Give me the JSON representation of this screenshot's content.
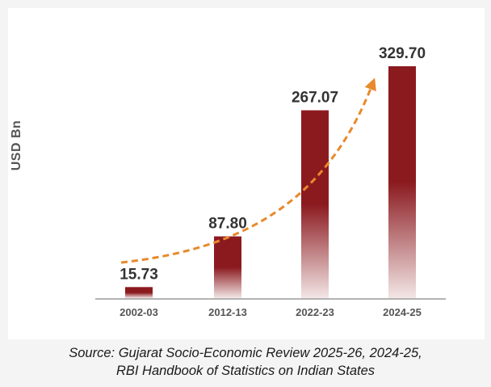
{
  "chart_data": {
    "type": "bar",
    "categories": [
      "2002-03",
      "2012-13",
      "2022-23",
      "2024-25"
    ],
    "values": [
      15.73,
      87.8,
      267.07,
      329.7
    ],
    "value_labels": [
      "15.73",
      "87.80",
      "267.07",
      "329.70"
    ],
    "title": "",
    "xlabel": "",
    "ylabel": "USD Bn",
    "ylim": [
      0,
      340
    ],
    "grid": false,
    "legend": "none",
    "trend_arrow": true
  },
  "source": {
    "line1": "Source: Gujarat Socio-Economic Review 2025-26, 2024-25,",
    "line2": "RBI Handbook of Statistics on Indian States"
  },
  "colors": {
    "bar": "#8b1a1f",
    "bar_fade": "#f3e6e6",
    "trend": "#e8892c",
    "axis": "#555555",
    "label_text": "#333333"
  }
}
